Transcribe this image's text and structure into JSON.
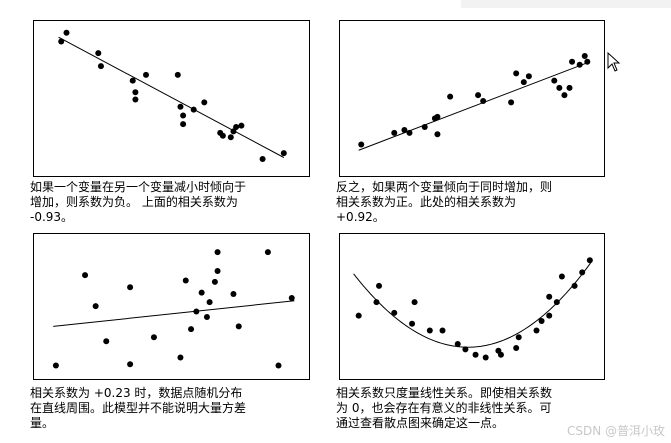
{
  "chart_data": [
    {
      "type": "scatter",
      "caption": "如果一个变量在另一个变量减小时倾向于\n增加，则系数为负。 上面的相关系数为\n-0.93。",
      "xlim": [
        0,
        100
      ],
      "ylim": [
        0,
        100
      ],
      "points": [
        [
          8,
          90
        ],
        [
          10,
          96
        ],
        [
          22,
          82
        ],
        [
          23,
          73
        ],
        [
          35,
          63
        ],
        [
          36,
          55
        ],
        [
          36,
          50
        ],
        [
          40,
          67
        ],
        [
          52,
          67
        ],
        [
          53,
          45
        ],
        [
          54,
          39
        ],
        [
          54,
          33
        ],
        [
          58,
          43
        ],
        [
          62,
          48
        ],
        [
          68,
          27
        ],
        [
          69,
          25
        ],
        [
          72,
          24
        ],
        [
          73,
          28
        ],
        [
          74,
          31
        ],
        [
          76,
          32
        ],
        [
          84,
          9
        ],
        [
          92,
          13
        ]
      ],
      "trend": [
        [
          7,
          93
        ],
        [
          92,
          10
        ]
      ]
    },
    {
      "type": "scatter",
      "caption": "反之，如果两个变量倾向于同时增加，则\n相关系数为正。此处的相关系数为\n+0.92。",
      "xlim": [
        0,
        100
      ],
      "ylim": [
        0,
        100
      ],
      "points": [
        [
          6,
          19
        ],
        [
          19,
          27
        ],
        [
          23,
          29
        ],
        [
          25,
          27
        ],
        [
          31,
          31
        ],
        [
          35,
          37
        ],
        [
          36,
          26
        ],
        [
          36,
          38
        ],
        [
          41,
          52
        ],
        [
          52,
          53
        ],
        [
          54,
          49
        ],
        [
          65,
          48
        ],
        [
          67,
          68
        ],
        [
          72,
          66
        ],
        [
          70,
          62
        ],
        [
          82,
          63
        ],
        [
          84,
          58
        ],
        [
          88,
          58
        ],
        [
          86,
          53
        ],
        [
          89,
          76
        ],
        [
          92,
          74
        ],
        [
          94,
          80
        ],
        [
          95,
          76
        ]
      ],
      "trend": [
        [
          5,
          15
        ],
        [
          96,
          76
        ]
      ]
    },
    {
      "type": "scatter",
      "caption": "相关系数为 +0.23 时，数据点随机分布\n在直线周围。此模型并不能说明大量方差\n量。",
      "xlim": [
        0,
        100
      ],
      "ylim": [
        0,
        100
      ],
      "points": [
        [
          6,
          7
        ],
        [
          17,
          74
        ],
        [
          21,
          51
        ],
        [
          25,
          25
        ],
        [
          34,
          65
        ],
        [
          34,
          8
        ],
        [
          43,
          28
        ],
        [
          53,
          13
        ],
        [
          55,
          70
        ],
        [
          57,
          34
        ],
        [
          59,
          47
        ],
        [
          61,
          61
        ],
        [
          63,
          43
        ],
        [
          64,
          54
        ],
        [
          66,
          69
        ],
        [
          67,
          91
        ],
        [
          67,
          77
        ],
        [
          73,
          60
        ],
        [
          75,
          36
        ],
        [
          86,
          91
        ],
        [
          90,
          7
        ],
        [
          95,
          57
        ]
      ],
      "trend": [
        [
          5,
          36
        ],
        [
          96,
          55
        ]
      ]
    },
    {
      "type": "scatter",
      "caption": "相关系数只度量线性关系。即使相关系数\n为 0，也会存在有意义的非线性关系。可\n通过查看散点图来确定这一点。",
      "xlim": [
        0,
        100
      ],
      "ylim": [
        0,
        100
      ],
      "points": [
        [
          5,
          44
        ],
        [
          12,
          54
        ],
        [
          13,
          66
        ],
        [
          19,
          46
        ],
        [
          26,
          38
        ],
        [
          27,
          54
        ],
        [
          33,
          33
        ],
        [
          38,
          33
        ],
        [
          44,
          23
        ],
        [
          47,
          19
        ],
        [
          51,
          15
        ],
        [
          55,
          13
        ],
        [
          60,
          18
        ],
        [
          61,
          15
        ],
        [
          67,
          20
        ],
        [
          68,
          28
        ],
        [
          75,
          33
        ],
        [
          77,
          40
        ],
        [
          80,
          44
        ],
        [
          83,
          54
        ],
        [
          80,
          58
        ],
        [
          85,
          73
        ],
        [
          90,
          66
        ],
        [
          93,
          76
        ],
        [
          96,
          85
        ]
      ],
      "trend": "quadratic"
    }
  ],
  "watermark": "CSDN @普洱小玫"
}
